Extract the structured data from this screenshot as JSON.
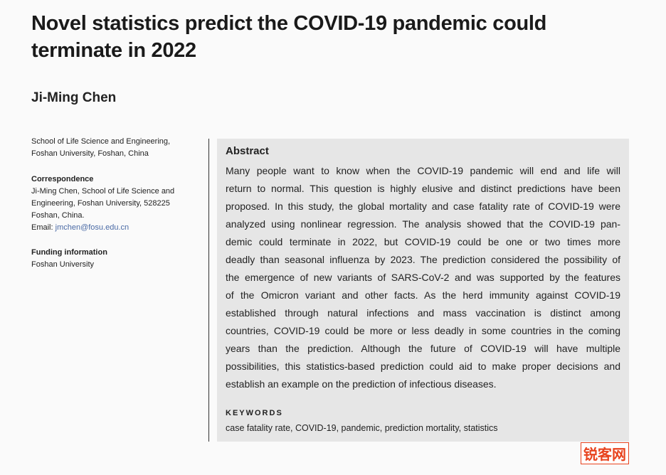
{
  "header": {
    "title_lines": [
      "Novel statistics predict the COVID-19 pandemic could",
      "terminate in 2022"
    ],
    "author": "Ji-Ming Chen"
  },
  "sidebar": {
    "affiliation_lines": [
      "School of Life Science and Engineering,",
      "Foshan University, Foshan, China"
    ],
    "correspondence": {
      "heading": "Correspondence",
      "lines": [
        "Ji-Ming Chen, School of Life Science and",
        "Engineering, Foshan University, 528225",
        "Foshan, China."
      ],
      "email_label": "Email:",
      "email": "jmchen@fosu.edu.cn"
    },
    "funding": {
      "heading": "Funding information",
      "text": "Foshan University"
    }
  },
  "abstract": {
    "heading": "Abstract",
    "lines": [
      "Many people want to know when the COVID-19 pandemic will end and life will",
      "return to normal. This question is highly elusive and distinct predictions have been",
      "proposed. In this study, the global mortality and case fatality rate of COVID-19 were",
      "analyzed using nonlinear regression. The analysis showed that the COVID-19 pan-",
      "demic could terminate in 2022, but COVID-19 could be one or two times more",
      "deadly than seasonal influenza by 2023. The prediction considered the possibility of",
      "the emergence of new variants of SARS-CoV-2 and was supported by the features",
      "of the Omicron variant and other facts. As the herd immunity against COVID-19",
      "established through natural infections and mass vaccination is distinct among",
      "countries, COVID-19 could be more or less deadly in some countries in the coming",
      "years than the prediction. Although the future of COVID-19 will have multiple",
      "possibilities, this statistics-based prediction could aid to make proper decisions and",
      "establish an example on the prediction of infectious diseases."
    ]
  },
  "keywords": {
    "heading": "KEYWORDS",
    "text": "case fatality rate, COVID-19, pandemic, prediction mortality, statistics"
  },
  "watermark": "锐客网"
}
